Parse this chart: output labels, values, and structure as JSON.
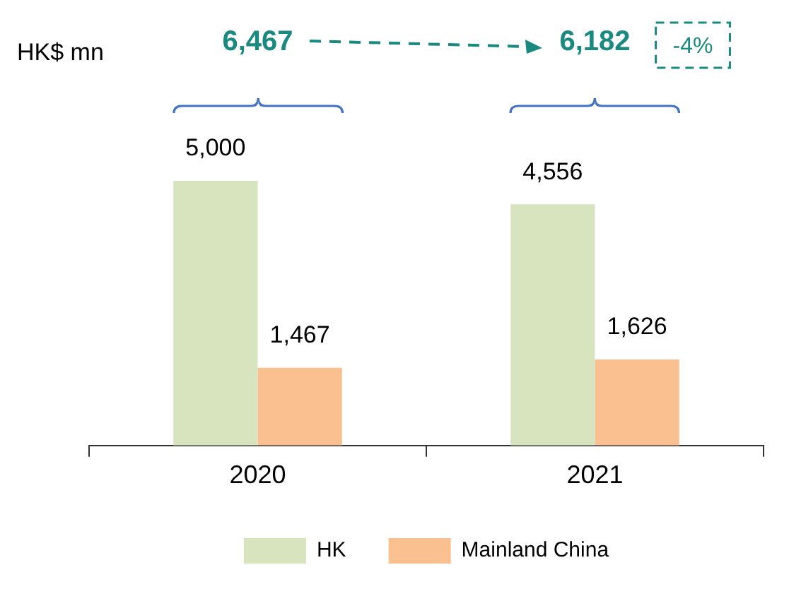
{
  "chart_data": {
    "type": "bar",
    "ylabel": "HK$ mn",
    "categories": [
      "2020",
      "2021"
    ],
    "series": [
      {
        "name": "HK",
        "color": "#d7e4bd",
        "values": [
          5000,
          4556
        ],
        "value_labels": [
          "5,000",
          "4,556"
        ]
      },
      {
        "name": "Mainland China",
        "color": "#fac090",
        "values": [
          1467,
          1626
        ],
        "value_labels": [
          "1,467",
          "1,626"
        ]
      }
    ],
    "annotations": [
      "6,467",
      "6,182",
      "-4%"
    ],
    "legend": "bottom",
    "grid": false
  }
}
